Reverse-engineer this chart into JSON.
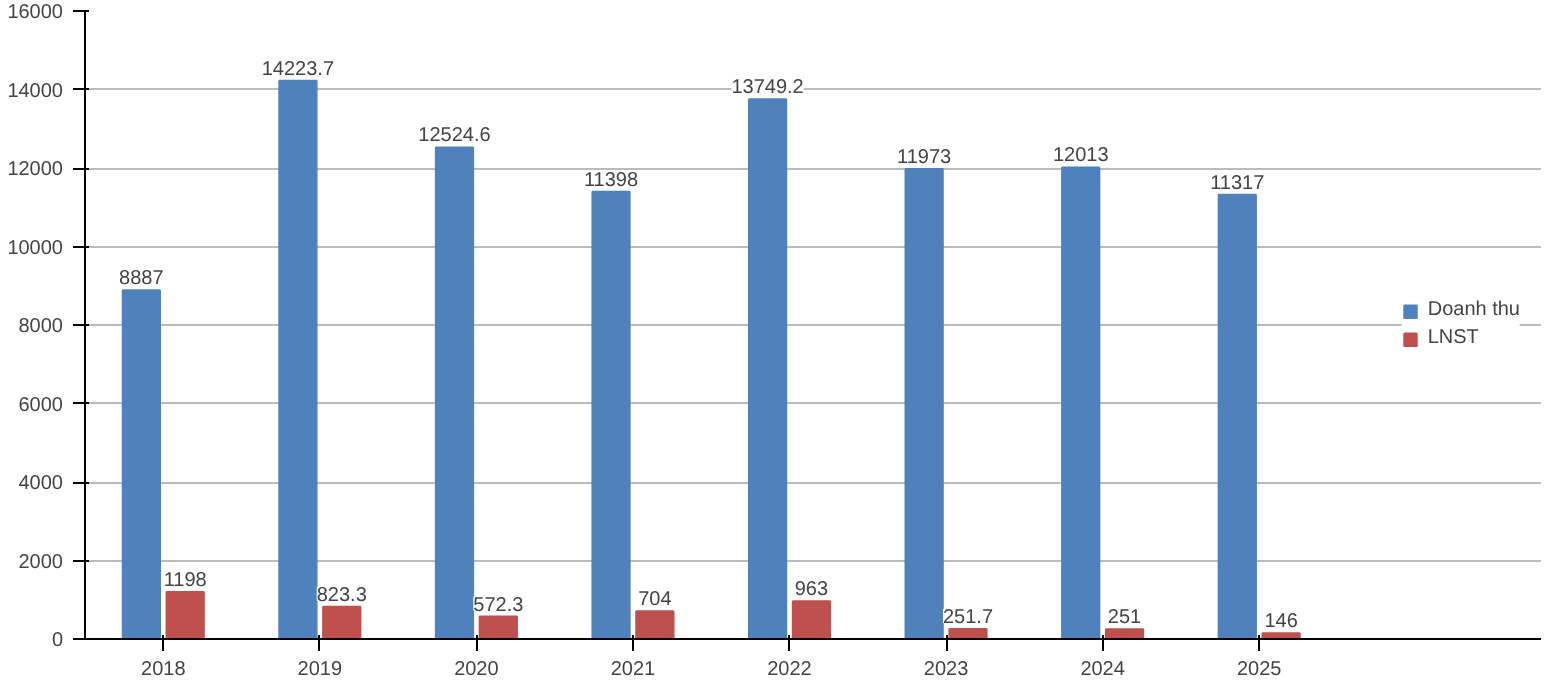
{
  "chart_data": {
    "type": "bar",
    "categories": [
      "2018",
      "2019",
      "2020",
      "2021",
      "2022",
      "2023",
      "2024",
      "2025"
    ],
    "series": [
      {
        "name": "Doanh thu",
        "color": "#4f81bd",
        "values": [
          8887,
          14223.7,
          12524.6,
          11398,
          13749.2,
          11973,
          12013,
          11317
        ]
      },
      {
        "name": "LNST",
        "color": "#c0504d",
        "values": [
          1198,
          823.3,
          572.3,
          704,
          963,
          251.7,
          251,
          146
        ]
      }
    ],
    "ylim": [
      0,
      16000
    ],
    "yticks": [
      0,
      2000,
      4000,
      6000,
      8000,
      10000,
      12000,
      14000,
      16000
    ],
    "grid": "y",
    "legend": "right",
    "data_labels": true
  }
}
